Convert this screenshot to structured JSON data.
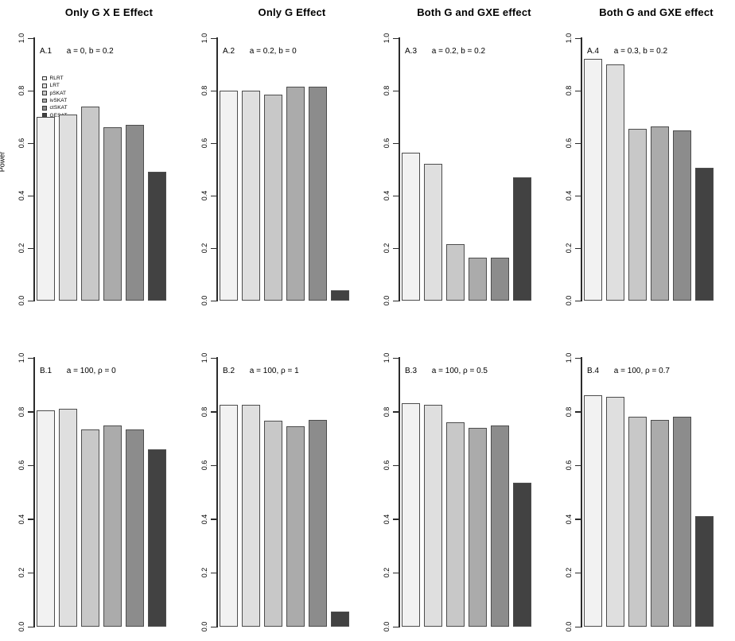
{
  "figure": {
    "ylabel": "Power",
    "y_ticks": [
      "0.0",
      "0.2",
      "0.4",
      "0.6",
      "0.8",
      "1.0"
    ],
    "bar_colors": [
      "#F2F2F2",
      "#DFDFDF",
      "#C8C8C8",
      "#ABABAB",
      "#8C8C8C",
      "#424242"
    ],
    "bar_border_color": "#4D4D4D",
    "legend": {
      "position": "top-left-of-panel-A1",
      "items": [
        {
          "label": "RLRT"
        },
        {
          "label": "LRT"
        },
        {
          "label": "pSKAT"
        },
        {
          "label": "ivSKAT"
        },
        {
          "label": "ctSKAT"
        },
        {
          "label": "GESAT"
        }
      ]
    },
    "column_titles": [
      "Only G X E Effect",
      "Only G Effect",
      "Both G and GXE effect",
      "Both G and GXE effect"
    ]
  },
  "chart_data": [
    {
      "type": "bar",
      "panel_id": "A.1",
      "title": "Only G X E Effect",
      "annotation": "a = 0, b = 0.2",
      "categories": [
        "RLRT",
        "LRT",
        "pSKAT",
        "ivSKAT",
        "ctSKAT",
        "GESAT"
      ],
      "values": [
        0.7,
        0.71,
        0.74,
        0.66,
        0.67,
        0.49
      ],
      "ylabel": "Power",
      "ylim": [
        0,
        1
      ],
      "grid": false,
      "legend_shown": true
    },
    {
      "type": "bar",
      "panel_id": "A.2",
      "title": "Only G Effect",
      "annotation": "a = 0.2, b = 0",
      "categories": [
        "RLRT",
        "LRT",
        "pSKAT",
        "ivSKAT",
        "ctSKAT",
        "GESAT"
      ],
      "values": [
        0.8,
        0.8,
        0.785,
        0.815,
        0.815,
        0.04
      ],
      "ylabel": "",
      "ylim": [
        0,
        1
      ],
      "grid": false,
      "legend_shown": false
    },
    {
      "type": "bar",
      "panel_id": "A.3",
      "title": "Both G and GXE effect",
      "annotation": "a = 0.2, b = 0.2",
      "categories": [
        "RLRT",
        "LRT",
        "pSKAT",
        "ivSKAT",
        "ctSKAT",
        "GESAT"
      ],
      "values": [
        0.565,
        0.52,
        0.215,
        0.165,
        0.165,
        0.47
      ],
      "ylabel": "",
      "ylim": [
        0,
        1
      ],
      "grid": false,
      "legend_shown": false
    },
    {
      "type": "bar",
      "panel_id": "A.4",
      "title": "Both G and GXE effect",
      "annotation": "a = 0.3, b = 0.2",
      "categories": [
        "RLRT",
        "LRT",
        "pSKAT",
        "ivSKAT",
        "ctSKAT",
        "GESAT"
      ],
      "values": [
        0.92,
        0.9,
        0.655,
        0.665,
        0.65,
        0.505
      ],
      "ylabel": "",
      "ylim": [
        0,
        1
      ],
      "grid": false,
      "legend_shown": false
    },
    {
      "type": "bar",
      "panel_id": "B.1",
      "title": "",
      "annotation": "a = 100, ρ = 0",
      "categories": [
        "RLRT",
        "LRT",
        "pSKAT",
        "ivSKAT",
        "ctSKAT",
        "GESAT"
      ],
      "values": [
        0.805,
        0.81,
        0.735,
        0.75,
        0.735,
        0.66
      ],
      "ylabel": "",
      "ylim": [
        0,
        1
      ],
      "grid": false,
      "legend_shown": false
    },
    {
      "type": "bar",
      "panel_id": "B.2",
      "title": "",
      "annotation": "a = 100, ρ = 1",
      "categories": [
        "RLRT",
        "LRT",
        "pSKAT",
        "ivSKAT",
        "ctSKAT",
        "GESAT"
      ],
      "values": [
        0.825,
        0.825,
        0.765,
        0.745,
        0.77,
        0.055
      ],
      "ylabel": "",
      "ylim": [
        0,
        1
      ],
      "grid": false,
      "legend_shown": false
    },
    {
      "type": "bar",
      "panel_id": "B.3",
      "title": "",
      "annotation": "a = 100, ρ = 0.5",
      "categories": [
        "RLRT",
        "LRT",
        "pSKAT",
        "ivSKAT",
        "ctSKAT",
        "GESAT"
      ],
      "values": [
        0.83,
        0.825,
        0.76,
        0.74,
        0.75,
        0.535
      ],
      "ylabel": "",
      "ylim": [
        0,
        1
      ],
      "grid": false,
      "legend_shown": false
    },
    {
      "type": "bar",
      "panel_id": "B.4",
      "title": "",
      "annotation": "a = 100, ρ = 0.7",
      "categories": [
        "RLRT",
        "LRT",
        "pSKAT",
        "ivSKAT",
        "ctSKAT",
        "GESAT"
      ],
      "values": [
        0.86,
        0.855,
        0.78,
        0.77,
        0.78,
        0.41
      ],
      "ylabel": "",
      "ylim": [
        0,
        1
      ],
      "grid": false,
      "legend_shown": false
    }
  ]
}
